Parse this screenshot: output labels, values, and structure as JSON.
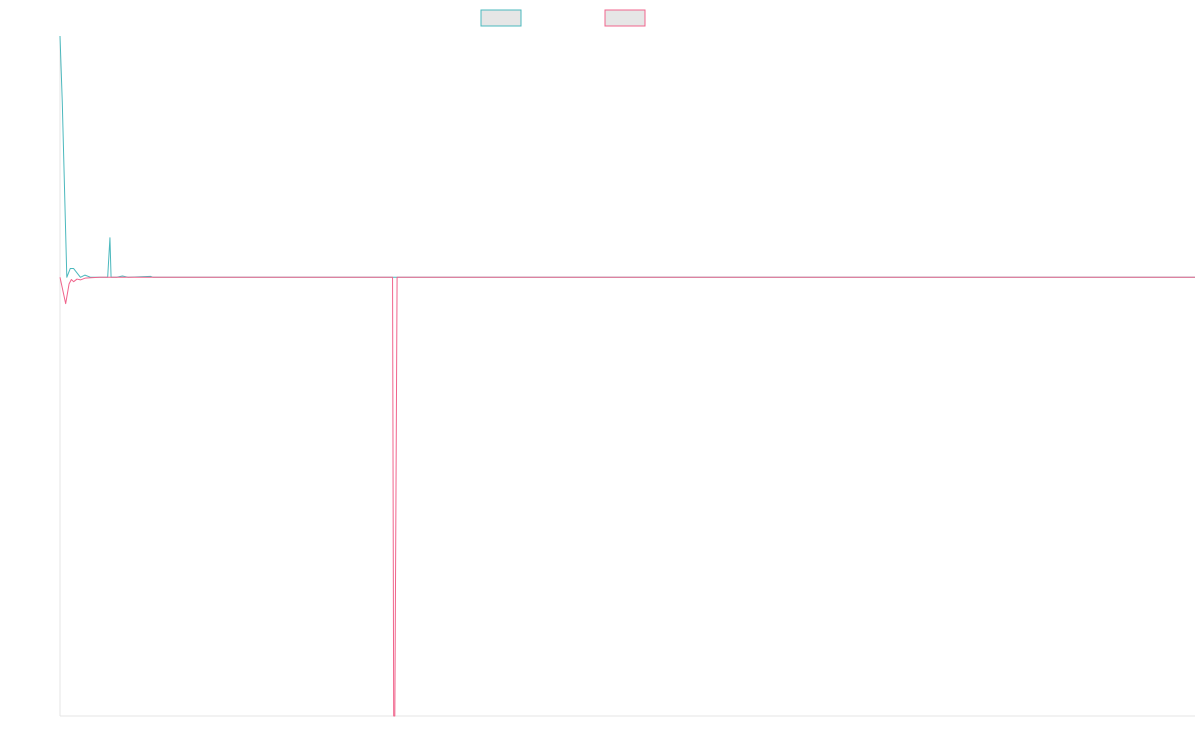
{
  "chart_data": {
    "type": "line",
    "title": "",
    "xlabel": "",
    "ylabel": "",
    "grid": false,
    "legend_position": "top-center",
    "xlim": [
      0,
      1000
    ],
    "ylim": [
      -1.0,
      0.55
    ],
    "series": [
      {
        "name": "",
        "color": "#4bb8bd",
        "points": [
          [
            0,
            0.55
          ],
          [
            2,
            0.4
          ],
          [
            6,
            0.0
          ],
          [
            9,
            0.02
          ],
          [
            12,
            0.02
          ],
          [
            15,
            0.01
          ],
          [
            18,
            0.0
          ],
          [
            22,
            0.005
          ],
          [
            27,
            0.0
          ],
          [
            42,
            0.0
          ],
          [
            44,
            0.09
          ],
          [
            45,
            0.0
          ],
          [
            50,
            0.0
          ],
          [
            55,
            0.003
          ],
          [
            60,
            0.0
          ],
          [
            80,
            0.002
          ],
          [
            82,
            0.0
          ],
          [
            1000,
            0.0
          ]
        ]
      },
      {
        "name": "",
        "color": "#f0648c",
        "points": [
          [
            0,
            0.0
          ],
          [
            5,
            -0.06
          ],
          [
            8,
            -0.015
          ],
          [
            10,
            -0.005
          ],
          [
            12,
            -0.01
          ],
          [
            15,
            -0.004
          ],
          [
            18,
            -0.006
          ],
          [
            22,
            -0.002
          ],
          [
            27,
            -0.001
          ],
          [
            35,
            0.0
          ],
          [
            293,
            0.0
          ],
          [
            294,
            -1.0
          ],
          [
            295,
            -1.0
          ],
          [
            297,
            0.0
          ],
          [
            1000,
            0.0
          ]
        ]
      }
    ]
  }
}
